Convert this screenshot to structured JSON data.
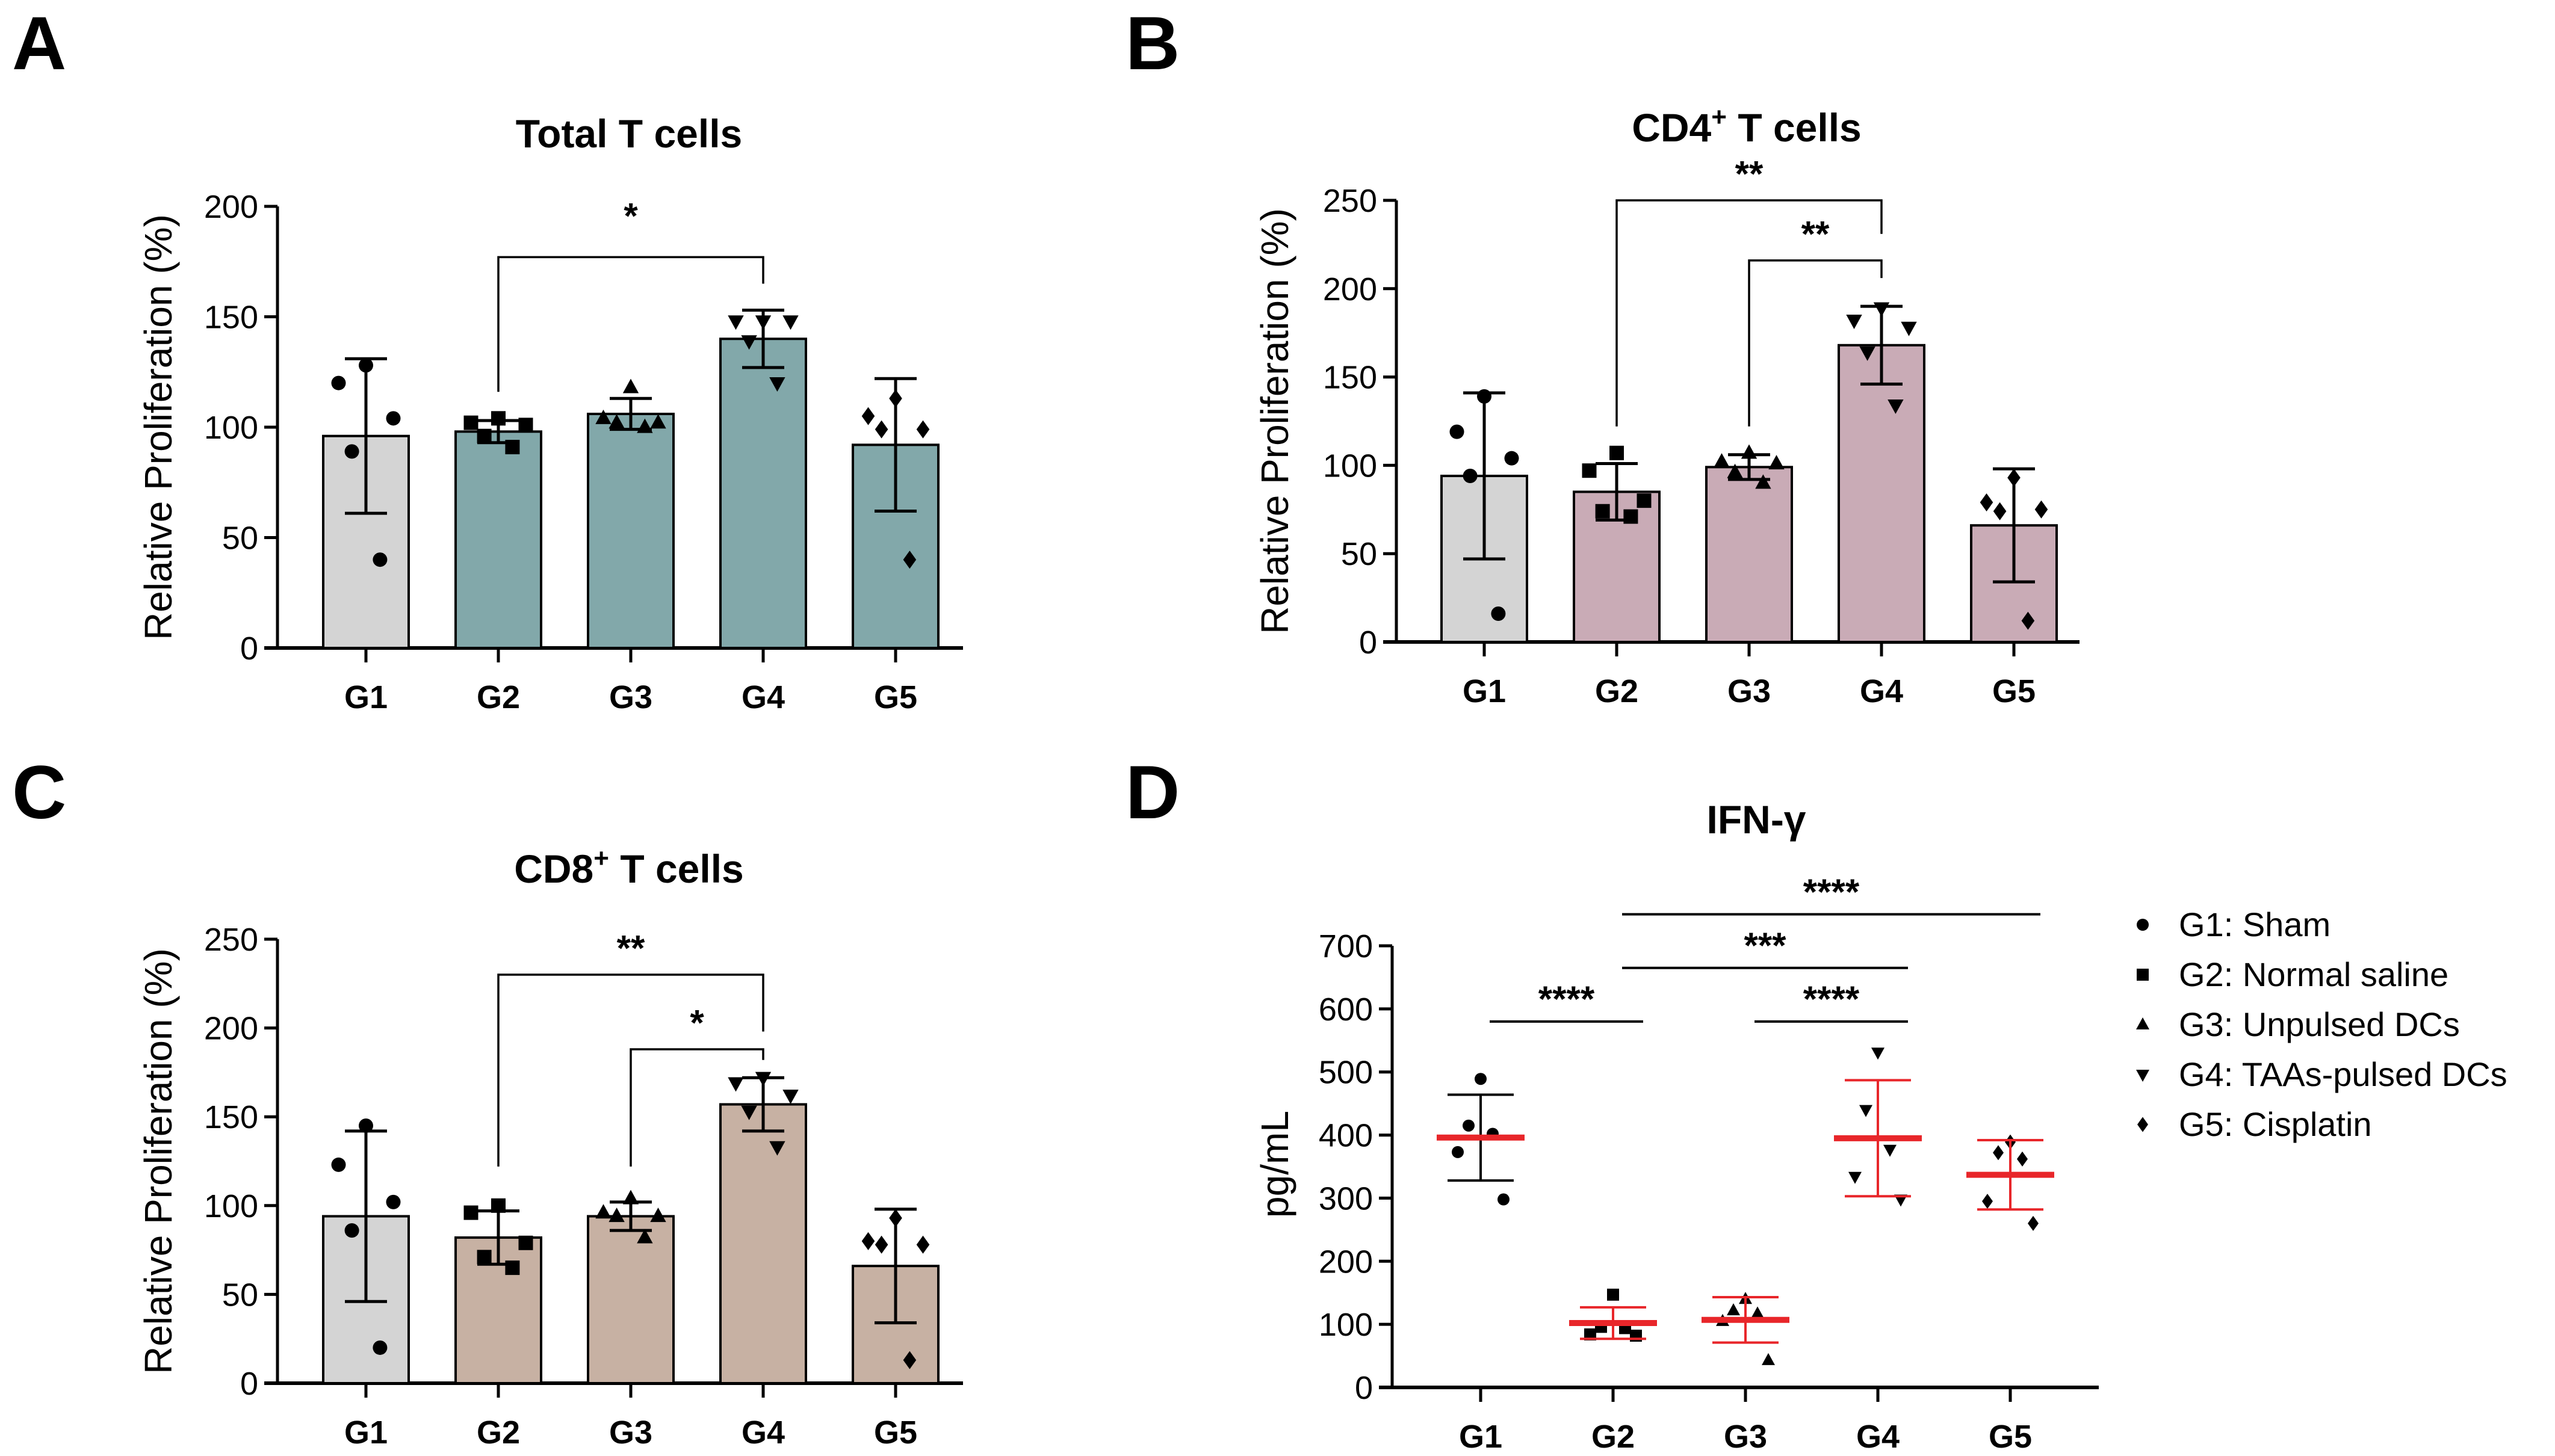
{
  "chart_data": [
    {
      "panel": "A",
      "type": "bar",
      "title": "Total T cells",
      "title_sup": "",
      "ylabel": "Relative Proliferation  (%)",
      "ylim": [
        0,
        200
      ],
      "yticks": [
        0,
        50,
        100,
        150,
        200
      ],
      "categories": [
        "G1",
        "G2",
        "G3",
        "G4",
        "G5"
      ],
      "bar_colors": [
        "#d4d4d4",
        "#82a8aa",
        "#82a8aa",
        "#82a8aa",
        "#82a8aa"
      ],
      "markers": [
        "circle",
        "square",
        "triangle-up",
        "triangle-down",
        "diamond"
      ],
      "means": [
        96,
        98,
        106,
        140,
        92
      ],
      "sd": [
        35,
        5,
        7,
        13,
        30
      ],
      "points": [
        [
          128,
          120,
          104,
          89,
          40
        ],
        [
          104,
          102,
          101,
          96,
          91
        ],
        [
          118,
          104,
          102,
          102,
          100
        ],
        [
          148,
          148,
          148,
          139,
          120
        ],
        [
          113,
          105,
          99,
          99,
          40
        ]
      ],
      "significance": [
        {
          "from": "G2",
          "to": "G4",
          "label": "*"
        }
      ]
    },
    {
      "panel": "B",
      "type": "bar",
      "title": "CD4",
      "title_sup": "+",
      "title_rest": " T cells",
      "ylabel": "Relative Proliferation  (%)",
      "ylim": [
        0,
        250
      ],
      "yticks": [
        0,
        50,
        100,
        150,
        200,
        250
      ],
      "categories": [
        "G1",
        "G2",
        "G3",
        "G4",
        "G5"
      ],
      "bar_colors": [
        "#d4d4d4",
        "#c9abb6",
        "#c9abb6",
        "#c9abb6",
        "#c9abb6"
      ],
      "markers": [
        "circle",
        "square",
        "triangle-up",
        "triangle-down",
        "diamond"
      ],
      "means": [
        94,
        85,
        99,
        168,
        66
      ],
      "sd": [
        47,
        16,
        7,
        22,
        32
      ],
      "points": [
        [
          139,
          119,
          104,
          94,
          16
        ],
        [
          107,
          97,
          80,
          74,
          71
        ],
        [
          107,
          102,
          101,
          96,
          90
        ],
        [
          189,
          182,
          178,
          164,
          134
        ],
        [
          93,
          79,
          75,
          74,
          12
        ]
      ],
      "significance": [
        {
          "from": "G2",
          "to": "G4",
          "label": "**"
        },
        {
          "from": "G3",
          "to": "G4",
          "label": "**"
        }
      ]
    },
    {
      "panel": "C",
      "type": "bar",
      "title": "CD8",
      "title_sup": "+",
      "title_rest": " T cells",
      "ylabel": "Relative Proliferation  (%)",
      "ylim": [
        0,
        250
      ],
      "yticks": [
        0,
        50,
        100,
        150,
        200,
        250
      ],
      "categories": [
        "G1",
        "G2",
        "G3",
        "G4",
        "G5"
      ],
      "bar_colors": [
        "#d4d4d4",
        "#c7b1a3",
        "#c7b1a3",
        "#c7b1a3",
        "#c7b1a3"
      ],
      "markers": [
        "circle",
        "square",
        "triangle-up",
        "triangle-down",
        "diamond"
      ],
      "means": [
        94,
        82,
        94,
        157,
        66
      ],
      "sd": [
        48,
        15,
        8,
        15,
        32
      ],
      "points": [
        [
          145,
          123,
          102,
          86,
          20
        ],
        [
          100,
          96,
          79,
          71,
          65
        ],
        [
          104,
          96,
          94,
          94,
          82
        ],
        [
          172,
          169,
          162,
          153,
          133
        ],
        [
          93,
          80,
          78,
          78,
          13
        ]
      ],
      "significance": [
        {
          "from": "G2",
          "to": "G4",
          "label": "**"
        },
        {
          "from": "G3",
          "to": "G4",
          "label": "*"
        }
      ]
    },
    {
      "panel": "D",
      "type": "scatter",
      "title": "IFN-γ",
      "title_sup": "",
      "ylabel": "pg/mL",
      "ylim": [
        0,
        700
      ],
      "yticks": [
        0,
        100,
        200,
        300,
        400,
        500,
        600,
        700
      ],
      "categories": [
        "G1",
        "G2",
        "G3",
        "G4",
        "G5"
      ],
      "markers": [
        "circle",
        "square",
        "triangle-up",
        "triangle-down",
        "diamond"
      ],
      "mean_colors": [
        "#e8262a",
        "#e8262a",
        "#e8262a",
        "#e8262a",
        "#e8262a"
      ],
      "errorbar_colors": [
        "#000000",
        "#e8262a",
        "#e8262a",
        "#e8262a",
        "#e8262a"
      ],
      "means": [
        396,
        102,
        107,
        395,
        337
      ],
      "sd": [
        68,
        25,
        36,
        92,
        55
      ],
      "points": [
        [
          489,
          415,
          402,
          373,
          298
        ],
        [
          147,
          96,
          94,
          84,
          82
        ],
        [
          140,
          122,
          117,
          105,
          43
        ],
        [
          531,
          440,
          377,
          334,
          298
        ],
        [
          389,
          372,
          362,
          295,
          260
        ]
      ],
      "significance": [
        {
          "from": "G1",
          "to": "G2",
          "label": "****"
        },
        {
          "from": "G3",
          "to": "G4",
          "label": "****"
        },
        {
          "from": "G2",
          "to": "G4",
          "label": "***"
        },
        {
          "from": "G2",
          "to": "G5",
          "label": "****"
        }
      ],
      "legend": [
        {
          "marker": "circle",
          "label": "G1: Sham"
        },
        {
          "marker": "square",
          "label": "G2: Normal saline"
        },
        {
          "marker": "triangle-up",
          "label": "G3: Unpulsed DCs"
        },
        {
          "marker": "triangle-down",
          "label": "G4: TAAs-pulsed DCs"
        },
        {
          "marker": "diamond",
          "label": "G5: Cisplatin"
        }
      ],
      "legend_position": "right"
    }
  ]
}
